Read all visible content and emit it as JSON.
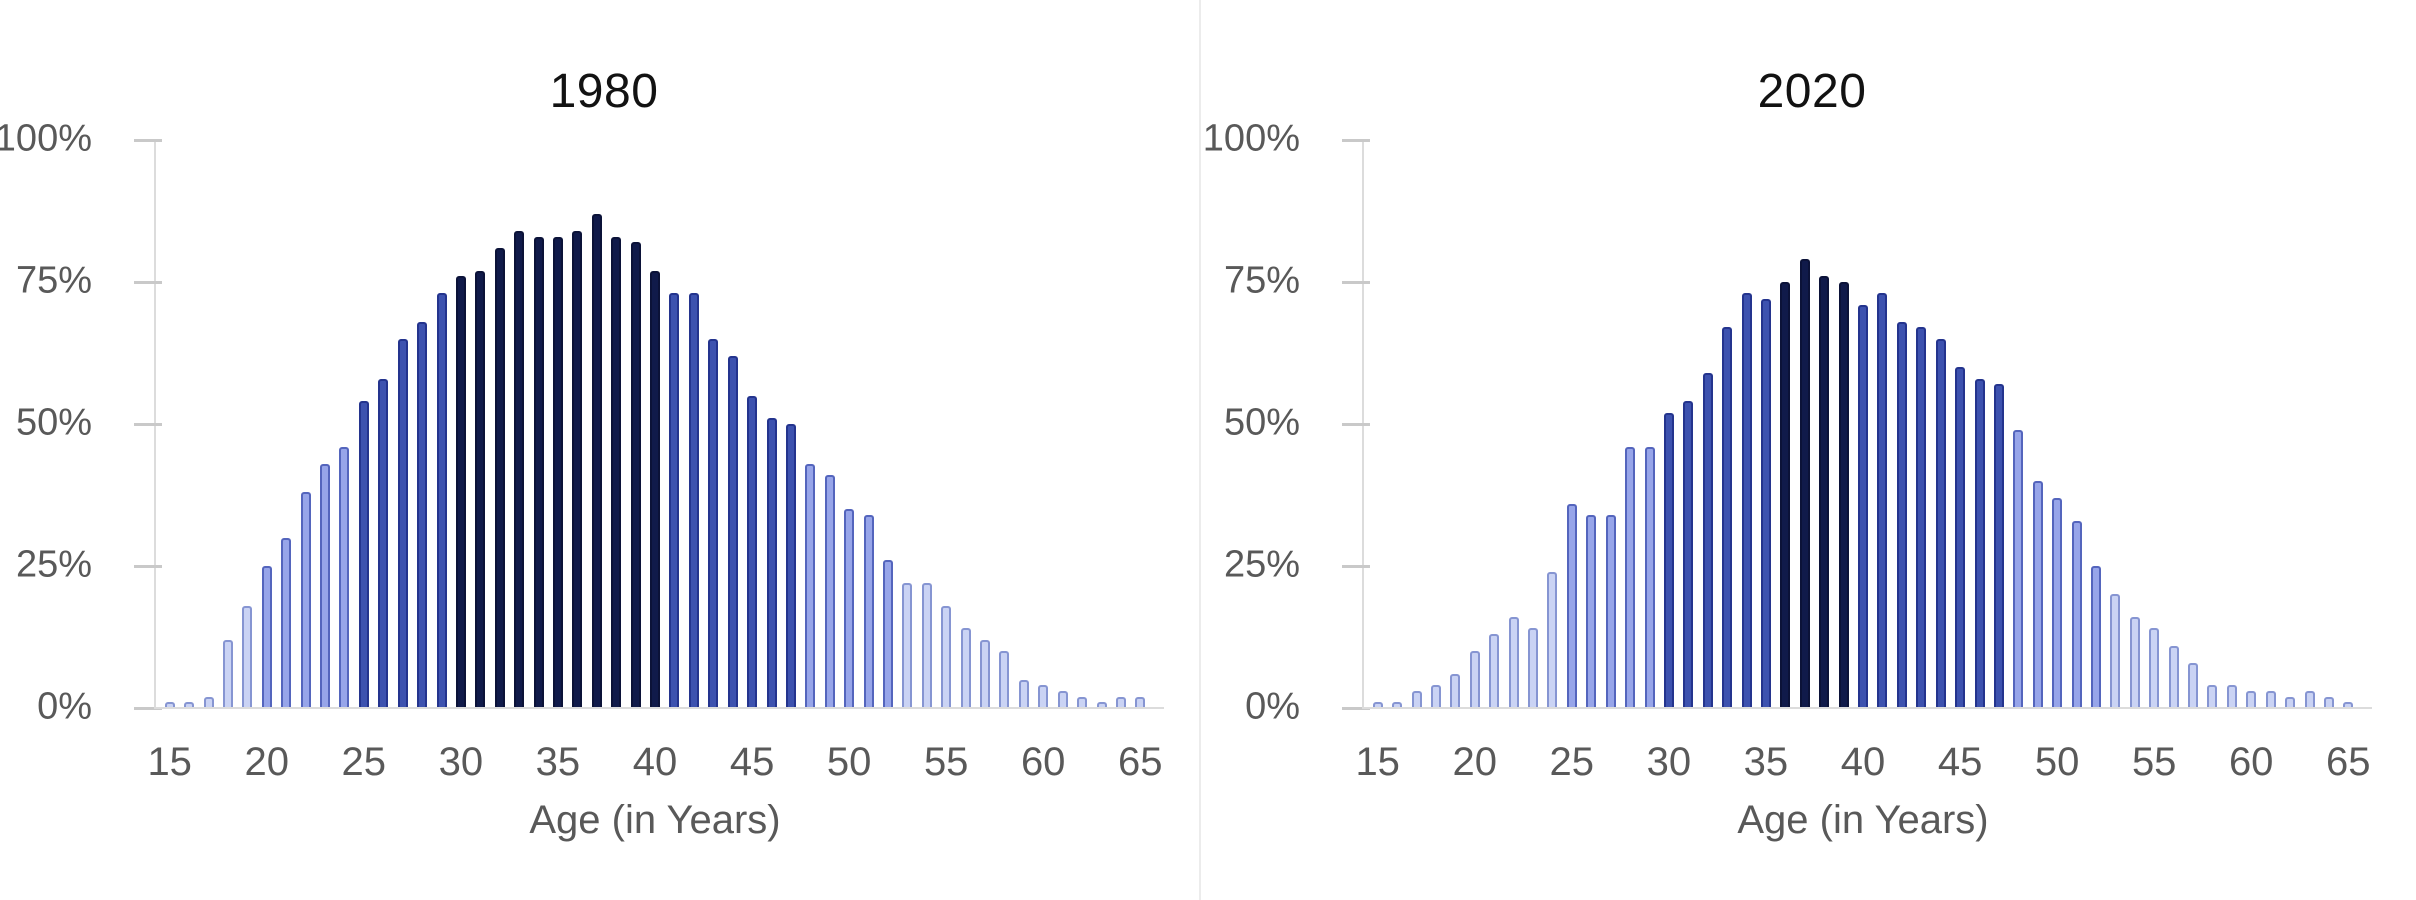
{
  "figure": {
    "background": "#ffffff",
    "description": "Two side-by-side age-distribution bar charts comparing 1980 and 2020"
  },
  "palette": {
    "bins": [
      {
        "name": "navy",
        "min": 75,
        "fill": "#101A4A",
        "edge": "#0B1238"
      },
      {
        "name": "royal",
        "min": 50,
        "fill": "#3D52AF",
        "edge": "#24348E"
      },
      {
        "name": "periwinkle",
        "min": 25,
        "fill": "#97A5E9",
        "edge": "#5465BD"
      },
      {
        "name": "pale",
        "min": 0,
        "fill": "#CAD3F4",
        "edge": "#8695D2"
      }
    ],
    "axis_text": "#595959",
    "title_text": "#121212",
    "axis_line": "#DCDCDC",
    "tick_line": "#C9C9C9",
    "divider": "#ECECEC"
  },
  "chart_data": [
    {
      "type": "bar",
      "title": "1980",
      "xlabel": "Age (in Years)",
      "ylabel": "",
      "ylim": [
        0,
        100
      ],
      "grid": false,
      "legend": false,
      "bar_unit": "percent",
      "color_rule": "bar color encodes value: <25% pale, 25-49% periwinkle, 50-74% royal, >=75% navy",
      "y_tick_labels": [
        "100%",
        "75%",
        "50%",
        "25%",
        "0%"
      ],
      "x_tick_labels": [
        "15",
        "20",
        "25",
        "30",
        "35",
        "40",
        "45",
        "50",
        "55",
        "60",
        "65"
      ],
      "categories": [
        15,
        16,
        17,
        18,
        19,
        20,
        21,
        22,
        23,
        24,
        25,
        26,
        27,
        28,
        29,
        30,
        31,
        32,
        33,
        34,
        35,
        36,
        37,
        38,
        39,
        40,
        41,
        42,
        43,
        44,
        45,
        46,
        47,
        48,
        49,
        50,
        51,
        52,
        53,
        54,
        55,
        56,
        57,
        58,
        59,
        60,
        61,
        62,
        63,
        64,
        65
      ],
      "values": [
        1,
        1,
        2,
        12,
        18,
        25,
        30,
        38,
        43,
        46,
        54,
        58,
        65,
        68,
        73,
        76,
        77,
        81,
        84,
        83,
        83,
        84,
        87,
        83,
        82,
        77,
        73,
        73,
        65,
        62,
        55,
        51,
        50,
        43,
        41,
        35,
        34,
        26,
        22,
        22,
        18,
        14,
        12,
        10,
        5,
        4,
        3,
        2,
        1,
        2,
        2
      ]
    },
    {
      "type": "bar",
      "title": "2020",
      "xlabel": "Age (in Years)",
      "ylabel": "",
      "ylim": [
        0,
        100
      ],
      "grid": false,
      "legend": false,
      "bar_unit": "percent",
      "color_rule": "bar color encodes value: <25% pale, 25-49% periwinkle, 50-74% royal, >=75% navy",
      "y_tick_labels": [
        "100%",
        "75%",
        "50%",
        "25%",
        "0%"
      ],
      "x_tick_labels": [
        "15",
        "20",
        "25",
        "30",
        "35",
        "40",
        "45",
        "50",
        "55",
        "60",
        "65"
      ],
      "categories": [
        15,
        16,
        17,
        18,
        19,
        20,
        21,
        22,
        23,
        24,
        25,
        26,
        27,
        28,
        29,
        30,
        31,
        32,
        33,
        34,
        35,
        36,
        37,
        38,
        39,
        40,
        41,
        42,
        43,
        44,
        45,
        46,
        47,
        48,
        49,
        50,
        51,
        52,
        53,
        54,
        55,
        56,
        57,
        58,
        59,
        60,
        61,
        62,
        63,
        64,
        65
      ],
      "values": [
        1,
        1,
        3,
        4,
        6,
        10,
        13,
        16,
        14,
        24,
        36,
        34,
        34,
        46,
        46,
        52,
        54,
        59,
        67,
        73,
        72,
        75,
        79,
        76,
        75,
        71,
        73,
        68,
        67,
        65,
        60,
        58,
        57,
        49,
        40,
        37,
        33,
        25,
        20,
        16,
        14,
        11,
        8,
        4,
        4,
        3,
        3,
        2,
        3,
        2,
        1
      ]
    }
  ]
}
